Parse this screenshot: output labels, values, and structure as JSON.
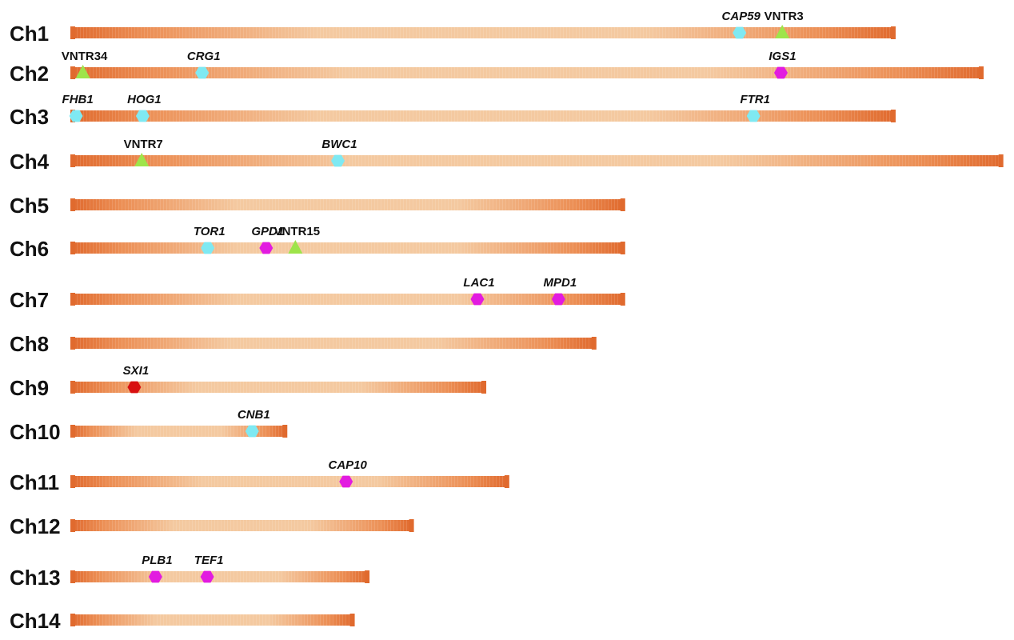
{
  "colors": {
    "end": "#E06A2E",
    "mid": "#F4C9A0",
    "gene_cyan": "#7FE9F2",
    "gene_magenta": "#E21BE0",
    "gene_red": "#D81010",
    "vntr_green": "#9EE44A"
  },
  "marker_types": {
    "cyan": "hexagon",
    "magenta": "hexagon",
    "red": "hexagon",
    "green": "triangle"
  },
  "chromosomes": [
    {
      "label": "Ch1",
      "length": 1.0,
      "markers": [
        {
          "name": "CAP59",
          "type": "cyan",
          "pos": 0.812
        },
        {
          "name": "VNTR3",
          "type": "green",
          "pos": 0.864
        }
      ]
    },
    {
      "label": "Ch2",
      "length": 1.107,
      "markers": [
        {
          "name": "VNTR34",
          "type": "green",
          "pos": 0.012
        },
        {
          "name": "CRG1",
          "type": "cyan",
          "pos": 0.143
        },
        {
          "name": "IGS1",
          "type": "magenta",
          "pos": 0.779
        }
      ]
    },
    {
      "label": "Ch3",
      "length": 1.0,
      "markers": [
        {
          "name": "FHB1",
          "type": "cyan",
          "pos": 0.005
        },
        {
          "name": "HOG1",
          "type": "cyan",
          "pos": 0.086
        },
        {
          "name": "FTR1",
          "type": "cyan",
          "pos": 0.829
        }
      ]
    },
    {
      "label": "Ch4",
      "length": 1.131,
      "markers": [
        {
          "name": "VNTR7",
          "type": "green",
          "pos": 0.075
        },
        {
          "name": "BWC1",
          "type": "cyan",
          "pos": 0.286
        }
      ]
    },
    {
      "label": "Ch5",
      "length": 0.671,
      "markers": []
    },
    {
      "label": "Ch6",
      "length": 0.671,
      "markers": [
        {
          "name": "TOR1",
          "type": "cyan",
          "pos": 0.246
        },
        {
          "name": "GPD1",
          "type": "magenta",
          "pos": 0.352
        },
        {
          "name": "VNTR15",
          "type": "green",
          "pos": 0.405
        }
      ]
    },
    {
      "label": "Ch7",
      "length": 0.671,
      "markers": [
        {
          "name": "LAC1",
          "type": "magenta",
          "pos": 0.735
        },
        {
          "name": "MPD1",
          "type": "magenta",
          "pos": 0.882
        }
      ]
    },
    {
      "label": "Ch8",
      "length": 0.636,
      "markers": []
    },
    {
      "label": "Ch9",
      "length": 0.502,
      "markers": [
        {
          "name": "SXI1",
          "type": "red",
          "pos": 0.151
        }
      ]
    },
    {
      "label": "Ch10",
      "length": 0.26,
      "markers": [
        {
          "name": "CNB1",
          "type": "cyan",
          "pos": 0.843
        }
      ]
    },
    {
      "label": "Ch11",
      "length": 0.53,
      "markers": [
        {
          "name": "CAP10",
          "type": "magenta",
          "pos": 0.629
        }
      ]
    },
    {
      "label": "Ch12",
      "length": 0.414,
      "markers": []
    },
    {
      "label": "Ch13",
      "length": 0.36,
      "markers": [
        {
          "name": "PLB1",
          "type": "magenta",
          "pos": 0.282
        },
        {
          "name": "TEF1",
          "type": "magenta",
          "pos": 0.457
        }
      ]
    },
    {
      "label": "Ch14",
      "length": 0.342,
      "markers": []
    }
  ]
}
